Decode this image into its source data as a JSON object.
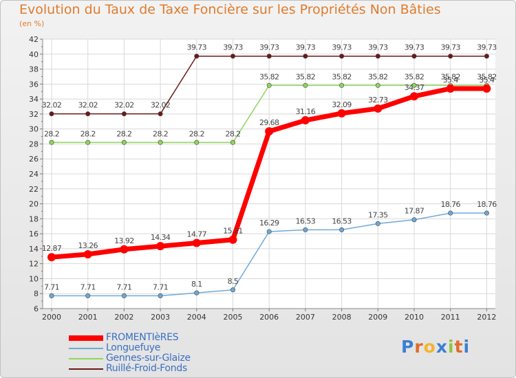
{
  "chart_data": {
    "type": "line",
    "title": "Evolution du Taux de Taxe Foncière sur les Propriétés Non Bâties",
    "unit_label": "(en %)",
    "xlabel": "",
    "ylabel": "",
    "categories": [
      "2000",
      "2001",
      "2002",
      "2003",
      "2004",
      "2005",
      "2006",
      "2007",
      "2008",
      "2009",
      "2010",
      "2011",
      "2012"
    ],
    "ylim": [
      6,
      42
    ],
    "yticks": [
      6,
      8,
      10,
      12,
      14,
      16,
      18,
      20,
      22,
      24,
      26,
      28,
      30,
      32,
      34,
      36,
      38,
      40,
      42
    ],
    "grid": true,
    "series": [
      {
        "name": "Ruillé-Froid-Fonds",
        "color": "#6b1818",
        "values": [
          32.02,
          32.02,
          32.02,
          32.02,
          39.73,
          39.73,
          39.73,
          39.73,
          39.73,
          39.73,
          39.73,
          39.73,
          39.73
        ],
        "labels": [
          "32.02",
          "32.02",
          "32.02",
          "32.02",
          "39.73",
          "39.73",
          "39.73",
          "39.73",
          "39.73",
          "39.73",
          "39.73",
          "39.73",
          "39.73"
        ]
      },
      {
        "name": "Gennes-sur-Glaize",
        "color": "#8ed65a",
        "values": [
          28.2,
          28.2,
          28.2,
          28.2,
          28.2,
          28.2,
          35.82,
          35.82,
          35.82,
          35.82,
          35.82,
          35.82,
          35.82
        ],
        "labels": [
          "28.2",
          "28.2",
          "28.2",
          "28.2",
          "28.2",
          "28.2",
          "35.82",
          "35.82",
          "35.82",
          "35.82",
          "35.82",
          "35.82",
          "35.82"
        ]
      },
      {
        "name": "Longuefuye",
        "color": "#6fa8d6",
        "values": [
          7.71,
          7.71,
          7.71,
          7.71,
          8.1,
          8.5,
          16.29,
          16.53,
          16.53,
          17.35,
          17.87,
          18.76,
          18.76
        ],
        "labels": [
          "7.71",
          "7.71",
          "7.71",
          "7.71",
          "8.1",
          "8.5",
          "16.29",
          "16.53",
          "16.53",
          "17.35",
          "17.87",
          "18.76",
          "18.76"
        ]
      },
      {
        "name": "FROMENTIèRES",
        "color": "#ff0000",
        "values": [
          12.87,
          13.26,
          13.92,
          14.34,
          14.77,
          15.21,
          29.68,
          31.16,
          32.09,
          32.73,
          34.37,
          35.4,
          35.4
        ],
        "labels": [
          "12.87",
          "13.26",
          "13.92",
          "14.34",
          "14.77",
          "15.21",
          "29.68",
          "31.16",
          "32.09",
          "32.73",
          "34.37",
          "35.4",
          "35.4"
        ]
      }
    ],
    "legend": [
      {
        "name": "FROMENTIèRES",
        "color": "#ff0000",
        "thick": true
      },
      {
        "name": "Longuefuye",
        "color": "#6fa8d6",
        "thick": false
      },
      {
        "name": "Gennes-sur-Glaize",
        "color": "#8ed65a",
        "thick": false
      },
      {
        "name": "Ruillé-Froid-Fonds",
        "color": "#6b1818",
        "thick": false
      }
    ]
  },
  "logo": {
    "letters": [
      "P",
      "r",
      "o",
      "x",
      "i",
      "t",
      "i"
    ],
    "colors": [
      "#3b7fd4",
      "#e06b2a",
      "#f2b52e",
      "#3b7fd4",
      "#8cc63f",
      "#e06b2a",
      "#3b7fd4"
    ]
  }
}
